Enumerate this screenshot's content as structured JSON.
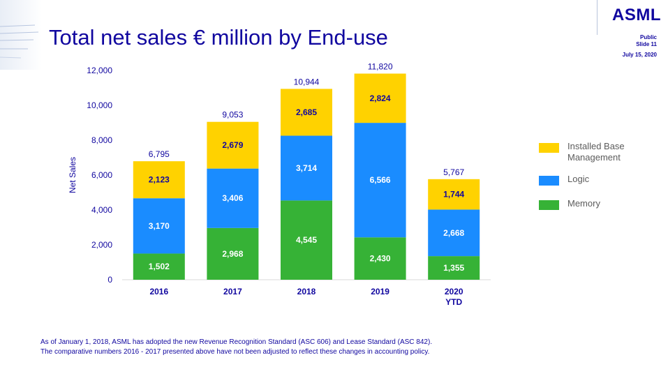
{
  "header": {
    "title": "Total net sales € million by End-use",
    "logo": "ASML",
    "classification": "Public",
    "slide": "Slide 11",
    "date": "July 15, 2020"
  },
  "chart_data": {
    "type": "bar",
    "stacked": true,
    "categories": [
      "2016",
      "2017",
      "2018",
      "2019",
      "2020\nYTD"
    ],
    "series": [
      {
        "name": "Memory",
        "color": "#36b236",
        "values": [
          1502,
          2968,
          4545,
          2430,
          1355
        ]
      },
      {
        "name": "Logic",
        "color": "#1a8cff",
        "values": [
          3170,
          3406,
          3714,
          6566,
          2668
        ]
      },
      {
        "name": "Installed Base\nManagement",
        "color": "#ffd200",
        "values": [
          2123,
          2679,
          2685,
          2824,
          1744
        ]
      }
    ],
    "segment_labels": [
      [
        "1,502",
        "2,968",
        "4,545",
        "2,430",
        "1,355"
      ],
      [
        "3,170",
        "3,406",
        "3,714",
        "6,566",
        "2,668"
      ],
      [
        "2,123",
        "2,679",
        "2,685",
        "2,824",
        "1,744"
      ]
    ],
    "totals": [
      6795,
      9053,
      10944,
      11820,
      5767
    ],
    "total_labels": [
      "6,795",
      "9,053",
      "10,944",
      "11,820",
      "5,767"
    ],
    "ylabel": "Net Sales",
    "ylim": [
      0,
      12000
    ],
    "yticks": [
      0,
      2000,
      4000,
      6000,
      8000,
      10000,
      12000
    ],
    "ytick_labels": [
      "0",
      "2,000",
      "4,000",
      "6,000",
      "8,000",
      "10,000",
      "12,000"
    ],
    "grid": false,
    "legend_position": "right"
  },
  "footnote": {
    "line1": "As of January 1, 2018, ASML has adopted the new Revenue Recognition Standard (ASC 606) and Lease Standard (ASC 842).",
    "line2": "The comparative numbers 2016 - 2017 presented above have not been adjusted to reflect these changes in accounting policy."
  }
}
